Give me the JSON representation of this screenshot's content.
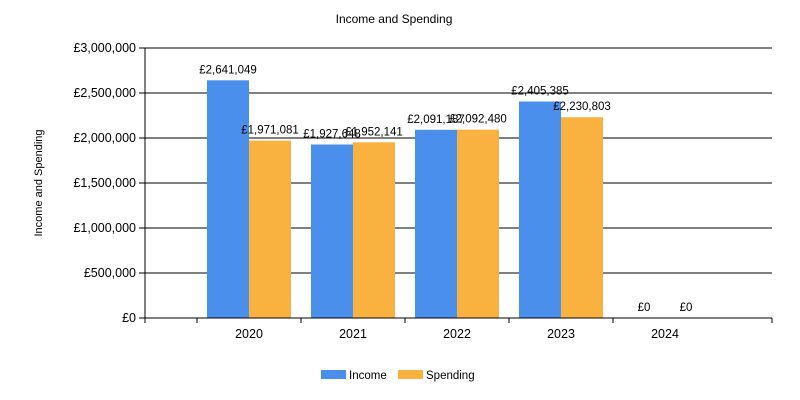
{
  "chart_data": {
    "type": "bar",
    "title": "Income and Spending",
    "xlabel": "",
    "ylabel": "Income and Spending",
    "categories": [
      "2020",
      "2021",
      "2022",
      "2023",
      "2024"
    ],
    "series": [
      {
        "name": "Income",
        "color": "#4a8fec",
        "values": [
          2641049,
          1927648,
          2091187,
          2405385,
          0
        ],
        "labels": [
          "£2,641,049",
          "£1,927,648",
          "£2,091,187",
          "£2,405,385",
          "£0"
        ]
      },
      {
        "name": "Spending",
        "color": "#f9b23f",
        "values": [
          1971081,
          1952141,
          2092480,
          2230803,
          0
        ],
        "labels": [
          "£1,971,081",
          "£1,952,141",
          "£2,092,480",
          "£2,230,803",
          "£0"
        ]
      }
    ],
    "ylim": [
      0,
      3000000
    ],
    "yticks": [
      0,
      500000,
      1000000,
      1500000,
      2000000,
      2500000,
      3000000
    ],
    "ytick_labels": [
      "£0",
      "£500,000",
      "£1,000,000",
      "£1,500,000",
      "£2,000,000",
      "£2,500,000",
      "£3,000,000"
    ],
    "grid": true,
    "legend_position": "bottom-center"
  }
}
